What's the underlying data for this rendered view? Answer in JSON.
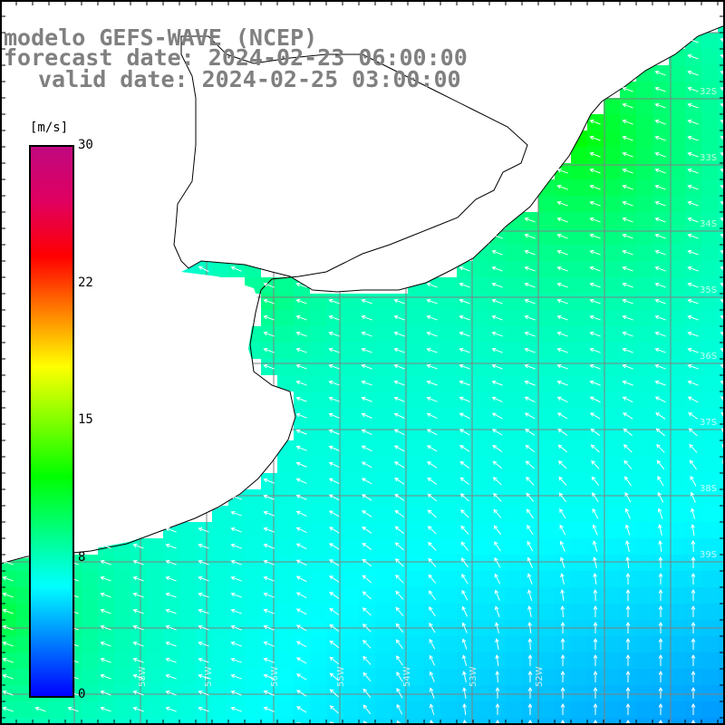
{
  "title": {
    "model": "modelo GEFS-WAVE (NCEP)",
    "forecast_date": "forecast date: 2024-02-23 06:00:00",
    "valid_date": "valid date: 2024-02-25 03:00:00"
  },
  "colorbar": {
    "units": "[m/s]",
    "min": 0,
    "max": 30,
    "ticks": [
      {
        "value": 30,
        "label": "30"
      },
      {
        "value": 22.5,
        "label": "22"
      },
      {
        "value": 15,
        "label": "15"
      },
      {
        "value": 7.5,
        "label": "8"
      },
      {
        "value": 0,
        "label": "0"
      }
    ],
    "colors": [
      "#0000ff",
      "#0080ff",
      "#00ffff",
      "#00ff80",
      "#00ff00",
      "#80ff00",
      "#ffff00",
      "#ff8000",
      "#ff0000",
      "#e00060",
      "#c0087f"
    ]
  },
  "map": {
    "variable": "wind speed and direction",
    "land_color": "#ffffff",
    "coast_color": "#000000",
    "grid_color": "#808080",
    "lat_labels": [
      "32S",
      "33S",
      "34S",
      "35S",
      "36S",
      "37S",
      "38S",
      "39S"
    ],
    "lon_labels": [
      "58W",
      "57W",
      "56W",
      "55W",
      "54W",
      "53W",
      "52W"
    ],
    "wind_summary": "easterly to southeasterly winds, 8-13 m/s near coast, weaker (3-5 m/s) offshore to the south"
  }
}
